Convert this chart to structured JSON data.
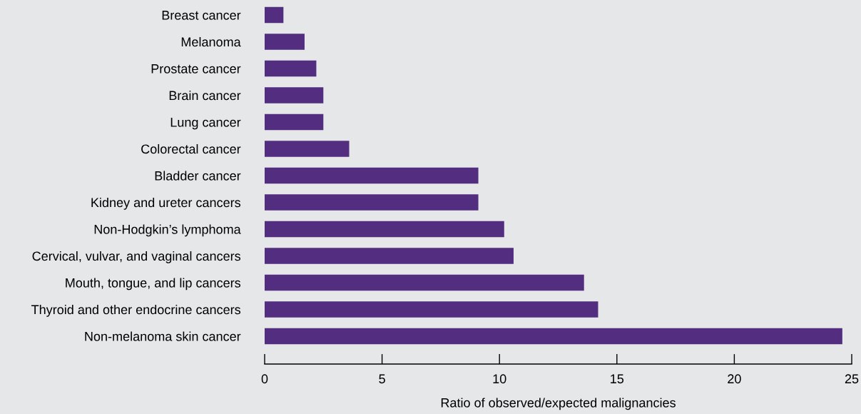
{
  "chart_data": {
    "type": "bar",
    "orientation": "horizontal",
    "xlabel": "Ratio of observed/expected malignancies",
    "categories": [
      "Breast cancer",
      "Melanoma",
      "Prostate cancer",
      "Brain cancer",
      "Lung cancer",
      "Colorectal cancer",
      "Bladder cancer",
      "Kidney and ureter cancers",
      "Non-Hodgkin’s lymphoma",
      "Cervical, vulvar, and vaginal cancers",
      "Mouth, tongue, and lip cancers",
      "Thyroid and other endocrine cancers",
      "Non-melanoma skin cancer"
    ],
    "values": [
      0.8,
      1.7,
      2.2,
      2.5,
      2.5,
      3.6,
      9.1,
      9.1,
      10.2,
      10.6,
      13.6,
      14.2,
      24.6
    ],
    "color": "#522d80",
    "xlim": [
      0,
      25
    ],
    "xticks": [
      0,
      5,
      10,
      15,
      20,
      25
    ],
    "grid": false,
    "legend": false
  }
}
